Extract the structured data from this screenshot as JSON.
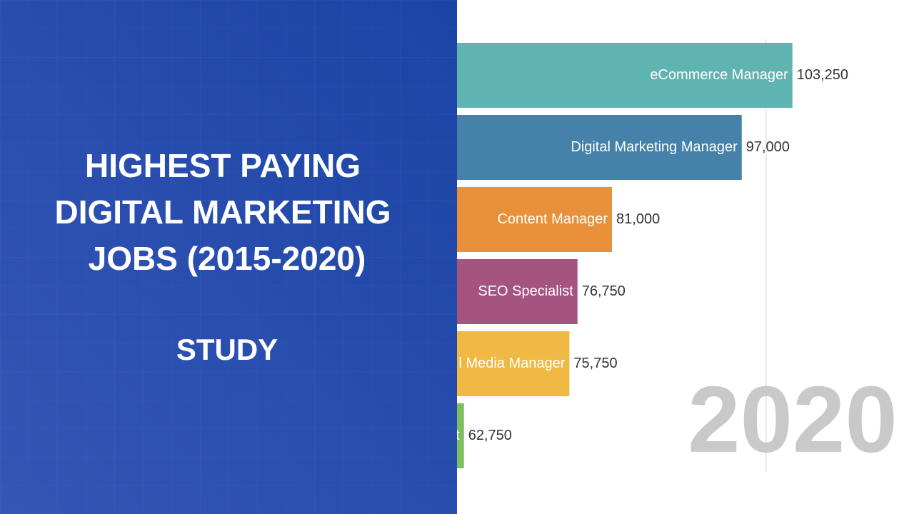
{
  "header": {
    "title_lines": [
      "HIGHEST PAYING",
      "DIGITAL MARKETING",
      "JOBS (2015-2020)"
    ],
    "subtitle": "STUDY"
  },
  "chart_data": {
    "type": "bar",
    "orientation": "horizontal",
    "annotation": "2020",
    "categories": [
      "eCommerce Manager",
      "Digital Marketing Manager",
      "Content Manager",
      "SEO Specialist",
      "l Media Manager",
      "t"
    ],
    "values": [
      103250,
      97000,
      81000,
      76750,
      75750,
      62750
    ],
    "value_labels": [
      "103,250",
      "97,000",
      "81,000",
      "76,750",
      "75,750",
      "62,750"
    ],
    "colors": [
      "#5fb3b0",
      "#4581a8",
      "#e8913a",
      "#a4547e",
      "#efb944",
      "#7cbf5f"
    ],
    "xlim": [
      0,
      120000
    ],
    "xticks": [
      100000
    ],
    "grid": true
  }
}
